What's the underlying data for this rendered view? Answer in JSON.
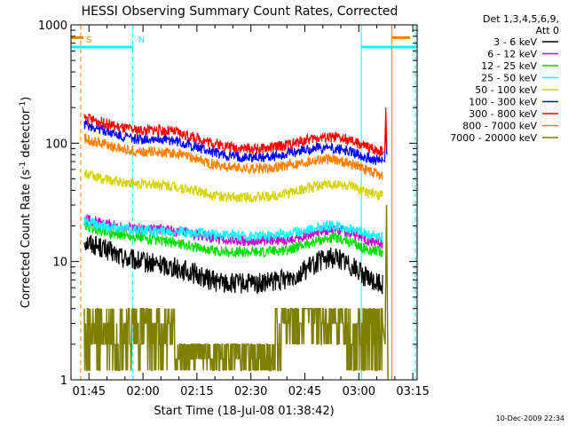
{
  "chart_data": {
    "type": "line",
    "title": "HESSI Observing Summary Count Rates, Corrected",
    "xlabel": "Start Time (18-Jul-08 01:38:42)",
    "ylabel": "Corrected Count Rate (s⁻¹ detector⁻¹)",
    "ylabel_main": "Corrected Count Rate (s",
    "ylabel_sup1": "-1",
    "ylabel_mid": " detector",
    "ylabel_sup2": "-1",
    "ylabel_end": ")",
    "yscale": "log",
    "ylim": [
      1,
      1000
    ],
    "xlim_minutes": [
      1.3,
      97.5
    ],
    "x_ticks": [
      {
        "label": "01:45",
        "minutes": 6.3
      },
      {
        "label": "02:00",
        "minutes": 21.3
      },
      {
        "label": "02:15",
        "minutes": 36.3
      },
      {
        "label": "02:30",
        "minutes": 51.3
      },
      {
        "label": "02:45",
        "minutes": 66.3
      },
      {
        "label": "03:00",
        "minutes": 81.3
      },
      {
        "label": "03:15",
        "minutes": 96.3
      }
    ],
    "y_ticks": [
      {
        "label": "1",
        "value": 1
      },
      {
        "label": "10",
        "value": 10
      },
      {
        "label": "100",
        "value": 100
      },
      {
        "label": "1000",
        "value": 1000
      }
    ],
    "legend": {
      "header_line1": "Det 1,3,4,5,6,9,",
      "header_line2": "Att 0",
      "placement": "outside-right"
    },
    "series": [
      {
        "name": "3 - 6 keV",
        "color": "#000000",
        "x": [
          5,
          10,
          15,
          20,
          25,
          30,
          35,
          40,
          45,
          50,
          55,
          60,
          65,
          70,
          75,
          80,
          84,
          88
        ],
        "y": [
          15,
          13,
          11,
          10,
          9.5,
          9,
          8,
          7,
          6.5,
          6.5,
          6.5,
          7,
          8,
          10,
          11,
          9,
          7,
          6.5
        ]
      },
      {
        "name": "6 - 12 keV",
        "color": "#cc00cc",
        "x": [
          5,
          10,
          15,
          20,
          25,
          30,
          35,
          40,
          45,
          50,
          55,
          60,
          65,
          70,
          75,
          80,
          84,
          88
        ],
        "y": [
          23,
          21,
          20,
          19,
          19,
          18,
          17,
          16,
          15,
          15,
          15,
          15,
          16,
          18,
          19,
          17,
          15,
          14
        ]
      },
      {
        "name": "12 - 25 keV",
        "color": "#00dd00",
        "x": [
          5,
          10,
          15,
          20,
          25,
          30,
          35,
          40,
          45,
          50,
          55,
          60,
          65,
          70,
          75,
          80,
          84,
          88
        ],
        "y": [
          20,
          18,
          17,
          16,
          15,
          14.5,
          13.5,
          12.5,
          12,
          12,
          12,
          12.5,
          13.5,
          15,
          16,
          14,
          12.5,
          12
        ]
      },
      {
        "name": "25 - 50 keV",
        "color": "#00ffff",
        "x": [
          5,
          10,
          15,
          20,
          25,
          30,
          35,
          40,
          45,
          50,
          55,
          60,
          65,
          70,
          75,
          80,
          84,
          88
        ],
        "y": [
          22,
          20,
          19,
          18.5,
          18,
          18,
          17.5,
          17,
          16.5,
          16.5,
          16.5,
          17,
          18,
          19.5,
          20,
          18.5,
          17,
          16
        ]
      },
      {
        "name": "50 - 100 keV",
        "color": "#d4d400",
        "x": [
          5,
          10,
          15,
          20,
          25,
          30,
          35,
          40,
          45,
          50,
          55,
          60,
          65,
          70,
          75,
          80,
          84,
          88
        ],
        "y": [
          55,
          50,
          47,
          45,
          45,
          43,
          40,
          37,
          35,
          35,
          35,
          37,
          40,
          44,
          45,
          42,
          38,
          36
        ]
      },
      {
        "name": "100 - 300 keV",
        "color": "#0000ff",
        "x": [
          5,
          10,
          15,
          20,
          25,
          30,
          35,
          40,
          45,
          50,
          55,
          60,
          65,
          70,
          75,
          80,
          84,
          88
        ],
        "y": [
          145,
          130,
          115,
          108,
          110,
          105,
          95,
          85,
          78,
          76,
          76,
          80,
          86,
          92,
          90,
          83,
          75,
          70
        ]
      },
      {
        "name": "300 - 800 keV",
        "color": "#ff0000",
        "x": [
          5,
          10,
          15,
          20,
          25,
          30,
          35,
          40,
          45,
          50,
          55,
          60,
          65,
          70,
          75,
          80,
          84,
          88
        ],
        "y": [
          165,
          150,
          135,
          128,
          130,
          125,
          113,
          102,
          94,
          90,
          90,
          95,
          103,
          112,
          112,
          102,
          92,
          85
        ]
      },
      {
        "name": "800 - 7000 keV",
        "color": "#ff8000",
        "x": [
          5,
          10,
          15,
          20,
          25,
          30,
          35,
          40,
          45,
          50,
          55,
          60,
          65,
          70,
          75,
          80,
          84,
          88
        ],
        "y": [
          110,
          100,
          90,
          85,
          85,
          82,
          75,
          68,
          63,
          61,
          61,
          64,
          68,
          73,
          72,
          66,
          58,
          53
        ]
      },
      {
        "name": "7000 - 20000 keV",
        "color": "#7f7f00",
        "x": [
          5,
          10,
          15,
          20,
          25,
          30,
          35,
          40,
          45,
          50,
          55,
          60,
          65,
          70,
          75,
          80,
          84,
          88
        ],
        "y": [
          2,
          2,
          3,
          3,
          2,
          3,
          2,
          1.5,
          1.5,
          1.5,
          2,
          2,
          3,
          4,
          3,
          2,
          1.5,
          2
        ]
      }
    ],
    "spikes": [
      {
        "series": "300 - 800 keV",
        "x": [
          88.5,
          88.8,
          89.1
        ],
        "y": [
          85,
          200,
          90
        ]
      },
      {
        "series": "100 - 300 keV",
        "x": [
          88.5,
          88.8,
          89.1
        ],
        "y": [
          70,
          150,
          80
        ]
      },
      {
        "series": "7000 - 20000 keV",
        "x": [
          88.6,
          89.0,
          89.4
        ],
        "y": [
          2,
          30,
          1
        ]
      }
    ],
    "markers": [
      {
        "label": "S",
        "color": "#ff8000",
        "x": 4.0,
        "y": 650,
        "kind": "dashed-line"
      },
      {
        "label": "N",
        "color": "#00ffff",
        "x": 18.5,
        "y": 650,
        "kind": "dashed-line"
      },
      {
        "label": "",
        "color": "#00ffff",
        "x": 82.0,
        "y": 650,
        "kind": "solid-line"
      },
      {
        "label": "",
        "color": "#ff8000",
        "x": 90.5,
        "y": 780,
        "kind": "solid-line"
      },
      {
        "label": "",
        "color": "#00ffff",
        "x": 97.0,
        "y": 650,
        "kind": "dashed-line"
      }
    ]
  },
  "footer": {
    "timestamp": "10-Dec-2009 22:34"
  }
}
